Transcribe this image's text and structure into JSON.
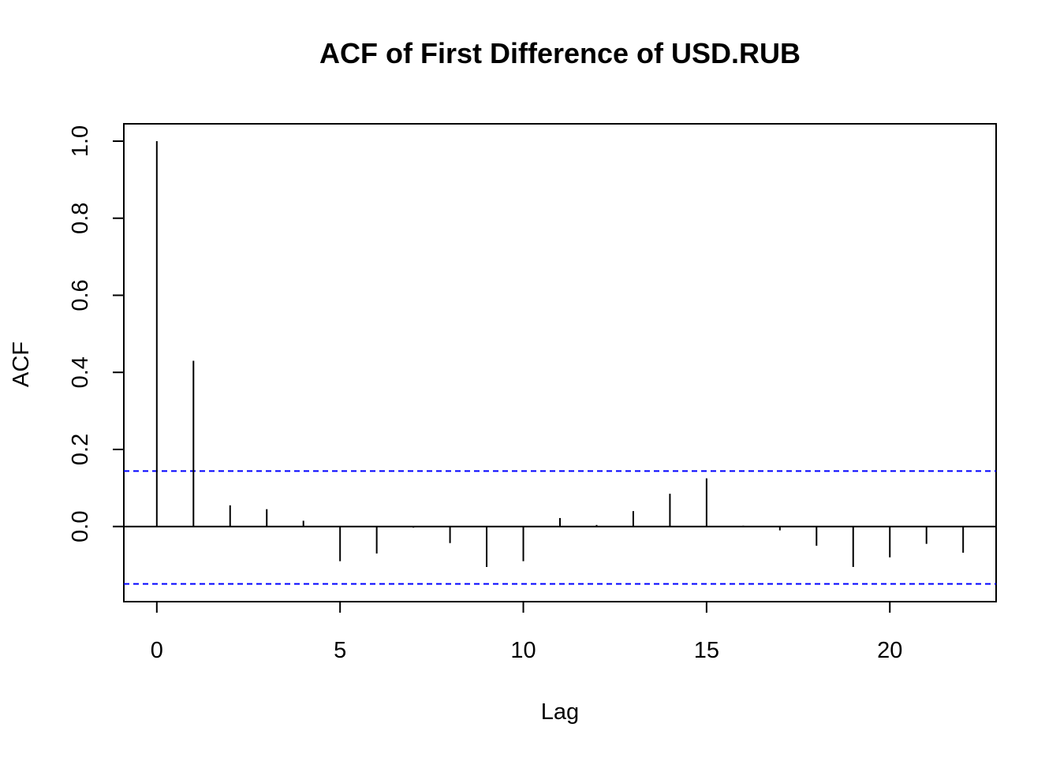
{
  "chart_data": {
    "type": "bar",
    "title": "ACF of First Difference of USD.RUB",
    "xlabel": "Lag",
    "ylabel": "ACF",
    "xlim": [
      -0.9,
      22.9
    ],
    "ylim": [
      -0.195,
      1.045
    ],
    "x_ticks": [
      0,
      5,
      10,
      15,
      20
    ],
    "y_ticks": [
      0.0,
      0.2,
      0.4,
      0.6,
      0.8,
      1.0
    ],
    "y_tick_labels": [
      "0.0",
      "0.2",
      "0.4",
      "0.6",
      "0.8",
      "1.0"
    ],
    "lags": [
      0,
      1,
      2,
      3,
      4,
      5,
      6,
      7,
      8,
      9,
      10,
      11,
      12,
      13,
      14,
      15,
      16,
      17,
      18,
      19,
      20,
      21,
      22
    ],
    "acf": [
      1.0,
      0.43,
      0.055,
      0.045,
      0.015,
      -0.09,
      -0.07,
      -0.003,
      -0.043,
      -0.105,
      -0.09,
      0.022,
      0.004,
      0.04,
      0.085,
      0.125,
      0.002,
      -0.01,
      -0.05,
      -0.105,
      -0.08,
      -0.045,
      -0.068
    ],
    "confidence_bounds": [
      0.144,
      -0.149
    ],
    "confidence_color": "#0000ff",
    "bar_color": "#000000",
    "grid": false
  }
}
